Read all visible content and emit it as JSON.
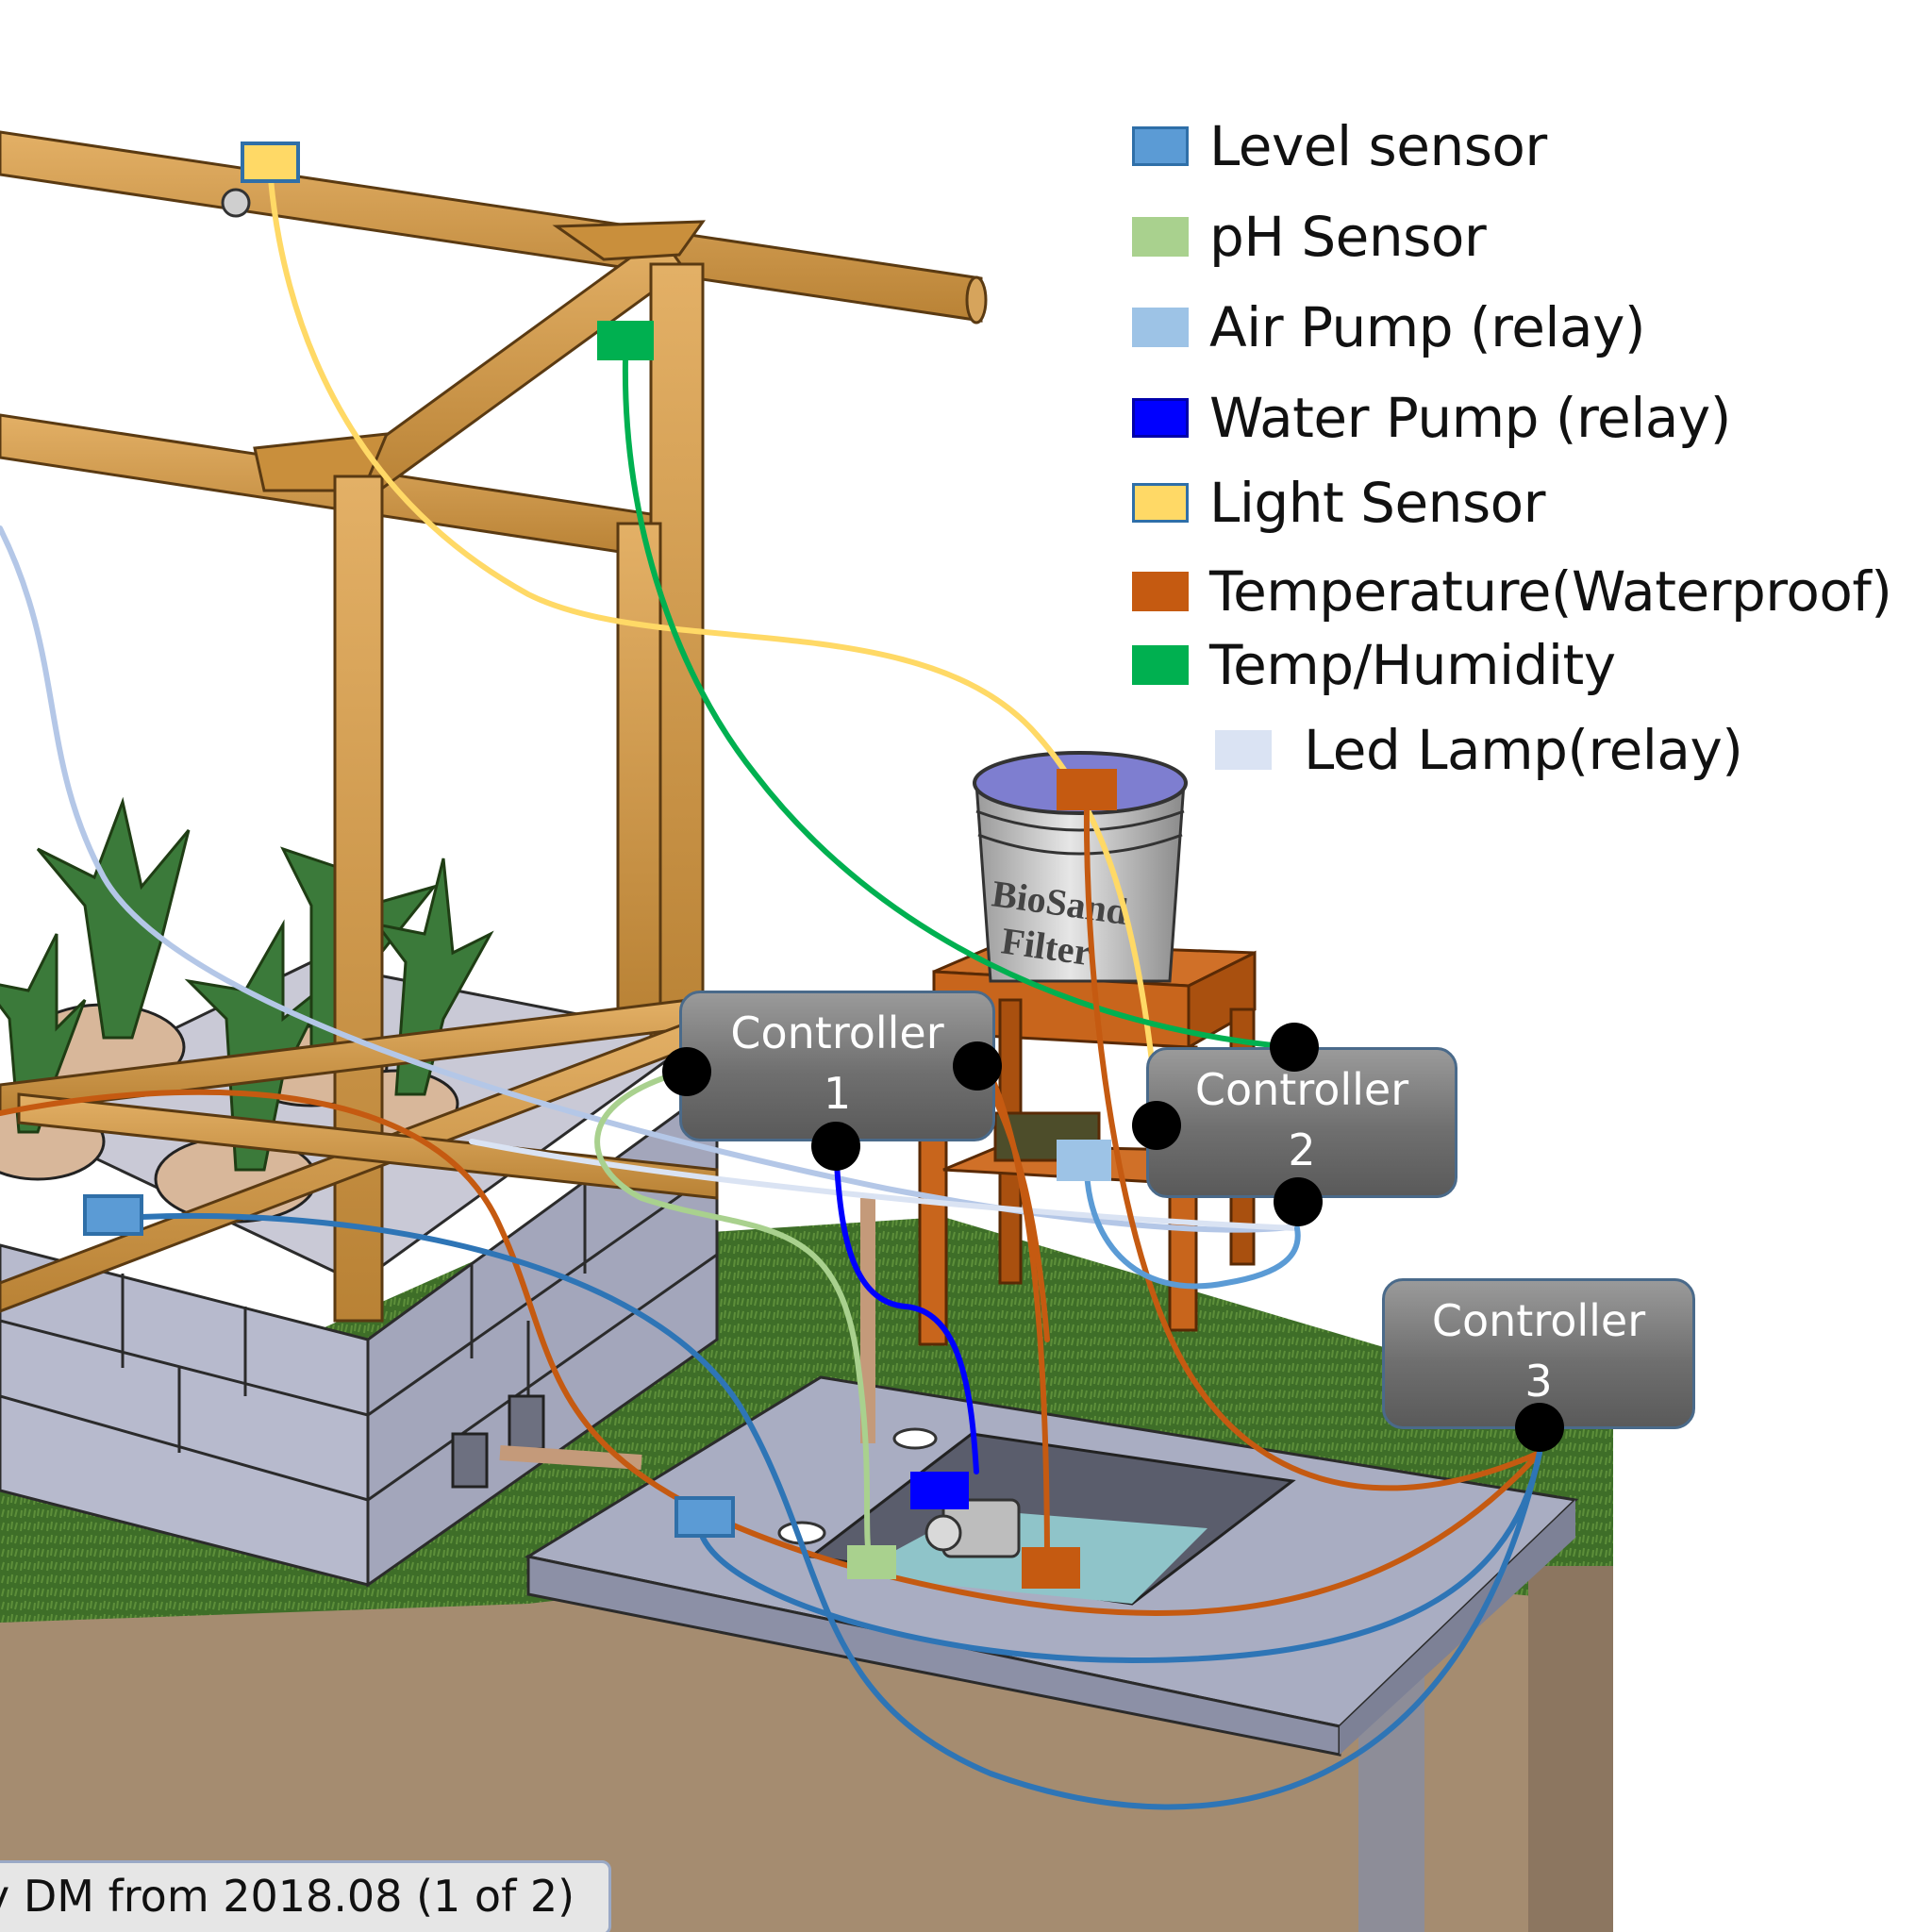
{
  "legend": {
    "items": [
      {
        "label": "Level sensor",
        "color": "#5b9bd5",
        "border": "#2f6fa8"
      },
      {
        "label": "pH Sensor",
        "color": "#a9d18e",
        "border": "#a9d18e"
      },
      {
        "label": "Air Pump (relay)",
        "color": "#9dc3e6",
        "border": "#9dc3e6"
      },
      {
        "label": "Water Pump (relay)",
        "color": "#0000ff",
        "border": "#0000aa"
      },
      {
        "label": "Light Sensor",
        "color": "#ffd966",
        "border": "#2f6fa8"
      },
      {
        "label": "Temperature(Waterproof)",
        "color": "#c55a11",
        "border": "#c55a11"
      },
      {
        "label": "Temp/Humidity",
        "color": "#00b050",
        "border": "#00b050"
      },
      {
        "label": "Led Lamp(relay)",
        "color": "#dae3f3",
        "border": "#dae3f3"
      }
    ]
  },
  "controllers": [
    {
      "line1": "Controller",
      "line2": "1"
    },
    {
      "line1": "Controller",
      "line2": "2"
    },
    {
      "line1": "Controller",
      "line2": "3"
    }
  ],
  "bucket": {
    "text1": "BioSand",
    "text2": "Filter"
  },
  "caption": {
    "text": "y DM from 2018.08 (1 of 2)"
  },
  "colors": {
    "wood": "#d49a4a",
    "wood_dark": "#a9732c",
    "grass": "#3f6f2a",
    "soil": "#a88f72",
    "concrete": "#a9adc0",
    "block": "#b6b9cc",
    "table": "#c8651c"
  }
}
